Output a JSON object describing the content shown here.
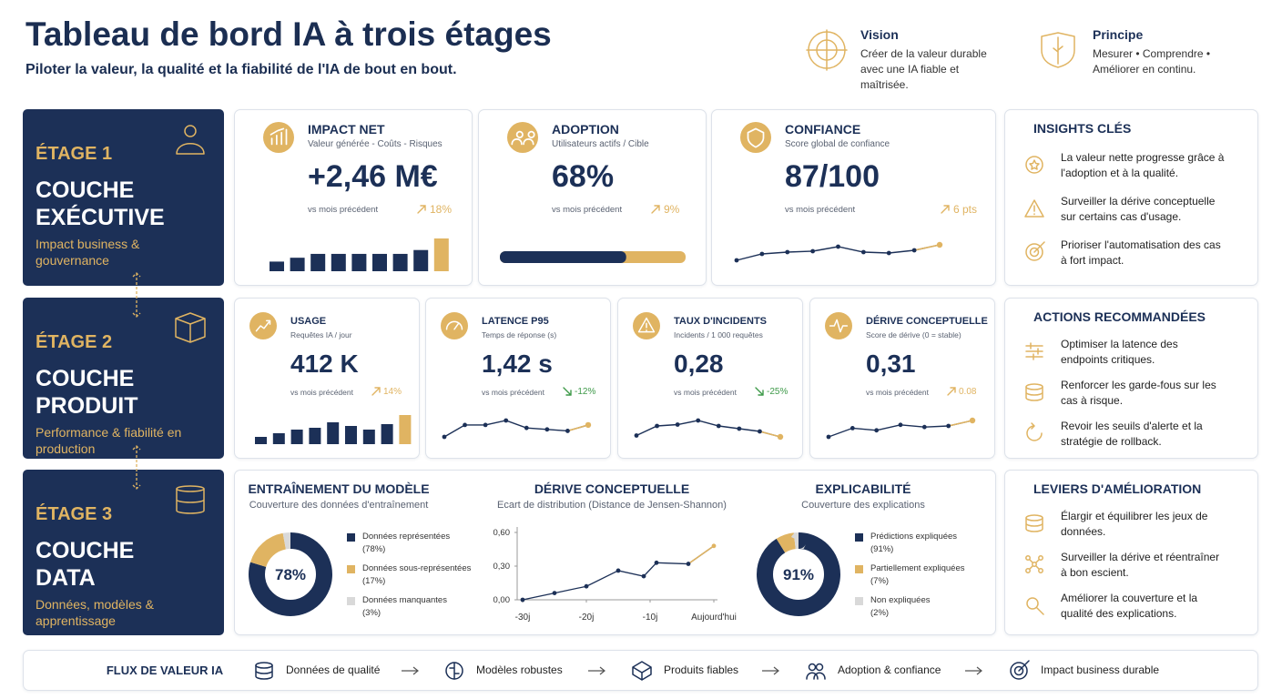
{
  "header": {
    "title": "Tableau de bord IA à trois étages",
    "subtitle": "Piloter la valeur, la qualité et la fiabilité de l'IA de bout en bout.",
    "vision": {
      "title": "Vision",
      "text": "Créer de la valeur durable avec une IA fiable et maîtrisée."
    },
    "principle": {
      "title": "Principe",
      "text": "Mesurer • Comprendre • Améliorer en continu."
    }
  },
  "tiers": [
    {
      "label": "ÉTAGE 1",
      "name": "COUCHE EXÉCUTIVE",
      "description": "Impact business & gouvernance"
    },
    {
      "label": "ÉTAGE 2",
      "name": "COUCHE PRODUIT",
      "description": "Performance & fiabilité en production"
    },
    {
      "label": "ÉTAGE 3",
      "name": "COUCHE DATA",
      "description": "Données, modèles & apprentissage"
    }
  ],
  "executive_kpis": [
    {
      "title": "IMPACT NET",
      "subtitle": "Valeur générée - Coûts - Risques",
      "value": "+2,46 M€",
      "comparison": "vs mois précédent",
      "delta": "18%",
      "trend": "up",
      "chart": {
        "type": "bar",
        "values": [
          10,
          14,
          18,
          18,
          18,
          18,
          18,
          22,
          34
        ]
      }
    },
    {
      "title": "ADOPTION",
      "subtitle": "Utilisateurs actifs / Cible",
      "value": "68%",
      "comparison": "vs mois précédent",
      "delta": "9%",
      "trend": "up",
      "chart": {
        "type": "progress",
        "progress": 68
      }
    },
    {
      "title": "CONFIANCE",
      "subtitle": "Score global de confiance",
      "value": "87/100",
      "comparison": "vs mois précédent",
      "delta": "6 pts",
      "trend": "up",
      "chart": {
        "type": "line",
        "values": [
          0,
          7,
          9,
          10,
          15,
          9,
          8,
          11,
          17
        ]
      }
    }
  ],
  "product_kpis": [
    {
      "title": "USAGE",
      "subtitle": "Requêtes IA / jour",
      "value": "412 K",
      "comparison": "vs mois précédent",
      "delta": "14%",
      "trend": "up",
      "chart": {
        "type": "bar",
        "values": [
          8,
          12,
          16,
          18,
          24,
          20,
          16,
          22,
          32
        ]
      }
    },
    {
      "title": "LATENCE P95",
      "subtitle": "Temps de réponse (s)",
      "value": "1,42 s",
      "comparison": "vs mois précédent",
      "delta": "-12%",
      "trend": "down",
      "chart": {
        "type": "line",
        "values": [
          6,
          14,
          14,
          17,
          12,
          11,
          10,
          14
        ]
      }
    },
    {
      "title": "TAUX D'INCIDENTS",
      "subtitle": "Incidents / 1 000 requêtes",
      "value": "0,28",
      "comparison": "vs mois précédent",
      "delta": "-25%",
      "trend": "down",
      "chart": {
        "type": "line",
        "values": [
          3,
          10,
          11,
          14,
          10,
          8,
          6,
          2
        ]
      }
    },
    {
      "title": "DÉRIVE CONCEPTUELLE",
      "subtitle": "Score de dérive (0 = stable)",
      "value": "0,31",
      "comparison": "vs mois précédent",
      "delta": "0.08",
      "trend": "up",
      "chart": {
        "type": "line",
        "values": [
          4,
          12,
          10,
          15,
          13,
          14,
          19
        ]
      }
    }
  ],
  "panels": [
    {
      "title": "INSIGHTS CLÉS",
      "items": [
        "La valeur nette progresse grâce à l'adoption et à la qualité.",
        "Surveiller la dérive conceptuelle sur certains cas d'usage.",
        "Prioriser l'automatisation des cas à fort impact."
      ]
    },
    {
      "title": "ACTIONS RECOMMANDÉES",
      "items": [
        "Optimiser la latence des endpoints critiques.",
        "Renforcer les garde-fous sur les cas à risque.",
        "Revoir les seuils d'alerte et la stratégie de rollback."
      ]
    },
    {
      "title": "LEVIERS D'AMÉLIORATION",
      "items": [
        "Élargir et équilibrer les jeux de données.",
        "Surveiller la dérive et réentraîner à bon escient.",
        "Améliorer la couverture et la qualité des explications."
      ]
    }
  ],
  "data_layer": {
    "training": {
      "type": "pie",
      "title": "ENTRAÎNEMENT DU MODÈLE",
      "subtitle": "Couverture des données d'entraînement",
      "center": "78%",
      "series": [
        {
          "name": "Données représentées",
          "value": 78,
          "value_label": "(78%)",
          "color": "#1c3057"
        },
        {
          "name": "Données sous-représentées",
          "value": 17,
          "value_label": "(17%)",
          "color": "#e0b462"
        },
        {
          "name": "Données manquantes",
          "value": 3,
          "value_label": "(3%)",
          "color": "#d9d9d9"
        }
      ]
    },
    "drift": {
      "type": "line",
      "title": "DÉRIVE CONCEPTUELLE",
      "subtitle": "Ecart de distribution (Distance de Jensen-Shannon)",
      "x": [
        -30,
        -25,
        -20,
        -15,
        -11,
        -9,
        -4,
        0
      ],
      "values": [
        0.0,
        0.06,
        0.12,
        0.26,
        0.21,
        0.33,
        0.32,
        0.48
      ],
      "xlim": [
        -30,
        0
      ],
      "xticks": [
        {
          "value": -30,
          "label": "-30j"
        },
        {
          "value": -20,
          "label": "-20j"
        },
        {
          "value": -10,
          "label": "-10j"
        },
        {
          "value": 0,
          "label": "Aujourd'hui"
        }
      ],
      "ylim": [
        0,
        0.6
      ],
      "yticks": [
        {
          "value": 0,
          "label": "0,00"
        },
        {
          "value": 0.3,
          "label": "0,30"
        },
        {
          "value": 0.6,
          "label": "0,60"
        }
      ]
    },
    "explainability": {
      "type": "pie",
      "title": "EXPLICABILITÉ",
      "subtitle": "Couverture des explications",
      "center": "91%",
      "series": [
        {
          "name": "Prédictions expliquées",
          "value": 91,
          "value_label": "(91%)",
          "color": "#1c3057"
        },
        {
          "name": "Partiellement expliquées",
          "value": 7,
          "value_label": "(7%)",
          "color": "#e0b462"
        },
        {
          "name": "Non expliquées",
          "value": 2,
          "value_label": "(2%)",
          "color": "#d9d9d9"
        }
      ]
    }
  },
  "flow": {
    "title": "FLUX DE VALEUR IA",
    "steps": [
      "Données de qualité",
      "Modèles robustes",
      "Produits fiables",
      "Adoption & confiance",
      "Impact business durable"
    ]
  }
}
